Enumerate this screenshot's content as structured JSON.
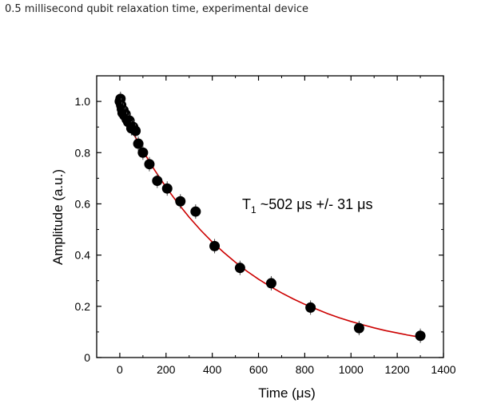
{
  "header": {
    "caption": "0.5 millisecond qubit relaxation time, experimental device"
  },
  "chart_data": {
    "type": "scatter",
    "xlabel": "Time (μs)",
    "ylabel": "Amplitude (a.u.)",
    "xlim": [
      -100,
      1400
    ],
    "ylim": [
      0,
      1.1
    ],
    "xticks": [
      0,
      200,
      400,
      600,
      800,
      1000,
      1200,
      1400
    ],
    "yticks": [
      0,
      0.2,
      0.4,
      0.6,
      0.8,
      1.0
    ],
    "ytick_labels": [
      "0",
      "0.2",
      "0.4",
      "0.6",
      "0.8",
      "1.0"
    ],
    "grid": false,
    "annotation": {
      "text_main": "T",
      "text_sub": "1",
      "text_rest": " ~502 μs +/- 31 μs",
      "x": 530,
      "y": 0.6
    },
    "series": [
      {
        "kind": "points",
        "color": "#000000",
        "x": [
          0,
          3,
          6,
          9,
          12,
          16,
          20,
          25,
          30,
          36,
          42,
          50,
          58,
          68,
          80,
          100,
          128,
          162,
          205,
          262,
          328,
          410,
          520,
          655,
          825,
          1035,
          1300
        ],
        "y": [
          1.0,
          1.01,
          0.985,
          0.97,
          0.955,
          0.965,
          0.945,
          0.95,
          0.93,
          0.92,
          0.925,
          0.895,
          0.9,
          0.885,
          0.835,
          0.8,
          0.755,
          0.69,
          0.66,
          0.61,
          0.57,
          0.435,
          0.35,
          0.29,
          0.195,
          0.115,
          0.085
        ]
      },
      {
        "kind": "fit",
        "color": "#cc0000",
        "x": [
          0,
          50,
          100,
          150,
          200,
          250,
          300,
          350,
          400,
          450,
          500,
          550,
          600,
          650,
          700,
          750,
          800,
          850,
          900,
          950,
          1000,
          1050,
          1100,
          1150,
          1200,
          1250,
          1300
        ],
        "y": [
          0.98,
          0.889,
          0.807,
          0.733,
          0.665,
          0.604,
          0.548,
          0.497,
          0.451,
          0.41,
          0.372,
          0.337,
          0.306,
          0.278,
          0.252,
          0.229,
          0.208,
          0.189,
          0.171,
          0.155,
          0.141,
          0.128,
          0.116,
          0.105,
          0.096,
          0.087,
          0.079
        ]
      }
    ]
  }
}
